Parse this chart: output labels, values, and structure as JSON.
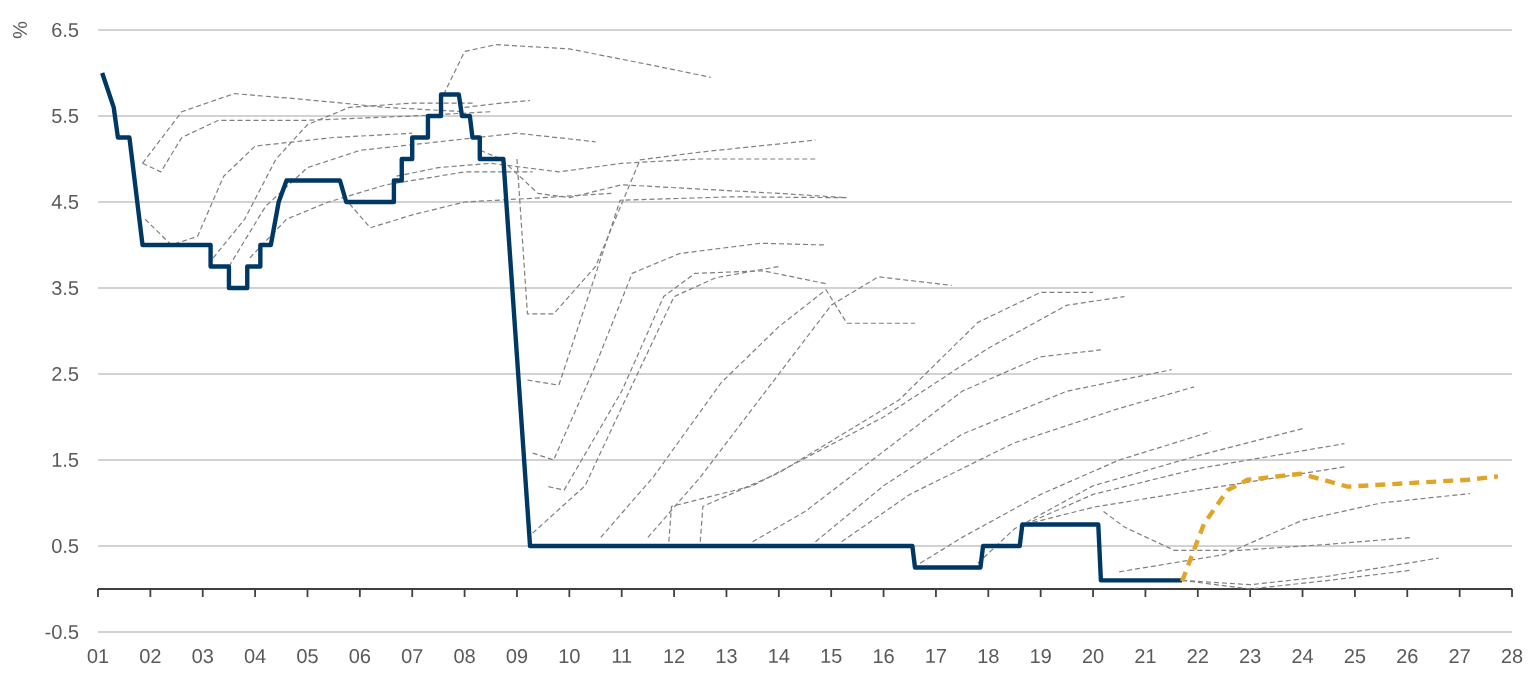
{
  "chart_data": {
    "type": "line",
    "ylabel": "%",
    "xlim": [
      1,
      28
    ],
    "ylim": [
      -0.5,
      6.5
    ],
    "xticks": [
      {
        "value": 1,
        "label": "01"
      },
      {
        "value": 2,
        "label": "02"
      },
      {
        "value": 3,
        "label": "03"
      },
      {
        "value": 4,
        "label": "04"
      },
      {
        "value": 5,
        "label": "05"
      },
      {
        "value": 6,
        "label": "06"
      },
      {
        "value": 7,
        "label": "07"
      },
      {
        "value": 8,
        "label": "08"
      },
      {
        "value": 9,
        "label": "09"
      },
      {
        "value": 10,
        "label": "10"
      },
      {
        "value": 11,
        "label": "11"
      },
      {
        "value": 12,
        "label": "12"
      },
      {
        "value": 13,
        "label": "13"
      },
      {
        "value": 14,
        "label": "14"
      },
      {
        "value": 15,
        "label": "15"
      },
      {
        "value": 16,
        "label": "16"
      },
      {
        "value": 17,
        "label": "17"
      },
      {
        "value": 18,
        "label": "18"
      },
      {
        "value": 19,
        "label": "19"
      },
      {
        "value": 20,
        "label": "20"
      },
      {
        "value": 21,
        "label": "21"
      },
      {
        "value": 22,
        "label": "22"
      },
      {
        "value": 23,
        "label": "23"
      },
      {
        "value": 24,
        "label": "24"
      },
      {
        "value": 25,
        "label": "25"
      },
      {
        "value": 26,
        "label": "26"
      },
      {
        "value": 27,
        "label": "27"
      },
      {
        "value": 28,
        "label": "28"
      }
    ],
    "yticks": [
      -0.5,
      0.5,
      1.5,
      2.5,
      3.5,
      4.5,
      5.5,
      6.5
    ],
    "grid": "y",
    "series": [
      {
        "color": "#7f7f7f",
        "line_style": "dashed",
        "x": [
          1.85,
          2.2,
          2.6,
          3.3,
          5.0,
          7.0,
          8.5
        ],
        "values": [
          4.95,
          4.85,
          5.25,
          5.45,
          5.45,
          5.5,
          5.55
        ]
      },
      {
        "color": "#7f7f7f",
        "line_style": "dashed",
        "x": [
          1.85,
          2.6,
          3.6,
          4.8,
          6.5,
          8.0
        ],
        "values": [
          4.95,
          5.55,
          5.76,
          5.7,
          5.6,
          5.55
        ]
      },
      {
        "color": "#7f7f7f",
        "line_style": "dashed",
        "x": [
          1.9,
          2.4,
          2.9,
          3.4,
          4.0,
          5.5,
          7.0
        ],
        "values": [
          4.3,
          4.0,
          4.1,
          4.8,
          5.15,
          5.25,
          5.3
        ]
      },
      {
        "color": "#7f7f7f",
        "line_style": "dashed",
        "x": [
          3.2,
          3.8,
          4.4,
          5.0,
          5.8,
          7.0,
          8.2
        ],
        "values": [
          3.85,
          4.3,
          5.0,
          5.4,
          5.6,
          5.65,
          5.65
        ]
      },
      {
        "color": "#7f7f7f",
        "line_style": "dashed",
        "x": [
          3.5,
          4.2,
          5.0,
          6.0,
          7.5,
          9.0,
          10.5
        ],
        "values": [
          3.75,
          4.45,
          4.9,
          5.1,
          5.2,
          5.3,
          5.2
        ]
      },
      {
        "color": "#7f7f7f",
        "line_style": "dashed",
        "x": [
          3.9,
          4.6,
          5.4,
          6.5,
          8.0,
          9.3
        ],
        "values": [
          3.85,
          4.3,
          4.5,
          4.7,
          4.85,
          4.85
        ]
      },
      {
        "color": "#7f7f7f",
        "line_style": "dashed",
        "x": [
          5.7,
          6.2,
          7.0,
          8.0,
          9.5,
          10.8
        ],
        "values": [
          4.55,
          4.2,
          4.35,
          4.5,
          4.55,
          4.6
        ]
      },
      {
        "color": "#7f7f7f",
        "line_style": "dashed",
        "x": [
          6.7,
          7.5,
          8.5,
          9.8,
          11.0,
          12.5,
          14.7
        ],
        "values": [
          4.8,
          4.9,
          4.95,
          4.85,
          4.95,
          5.0,
          5.0
        ]
      },
      {
        "color": "#7f7f7f",
        "line_style": "dashed",
        "x": [
          7.6,
          8.0,
          8.6,
          10.0,
          11.5,
          12.7
        ],
        "values": [
          5.75,
          6.25,
          6.33,
          6.28,
          6.1,
          5.95
        ]
      },
      {
        "color": "#7f7f7f",
        "line_style": "dashed",
        "x": [
          8.0,
          8.7,
          9.25
        ],
        "values": [
          5.6,
          5.65,
          5.68
        ]
      },
      {
        "color": "#7f7f7f",
        "line_style": "dashed",
        "x": [
          8.3,
          8.7,
          9.4,
          10.0,
          11.0,
          12.5,
          14.0,
          15.3
        ],
        "values": [
          5.1,
          5.0,
          4.6,
          4.55,
          4.7,
          4.65,
          4.6,
          4.55
        ]
      },
      {
        "color": "#7f7f7f",
        "line_style": "dashed",
        "x": [
          9.0,
          9.2,
          9.7,
          10.5,
          11.35,
          12.5,
          14.7
        ],
        "values": [
          5.0,
          3.2,
          3.2,
          3.75,
          4.99,
          5.08,
          5.22
        ]
      },
      {
        "color": "#7f7f7f",
        "line_style": "dashed",
        "x": [
          9.2,
          9.8,
          10.97,
          13.1,
          15.3
        ],
        "values": [
          2.43,
          2.37,
          4.52,
          4.56,
          4.55
        ]
      },
      {
        "color": "#7f7f7f",
        "line_style": "dashed",
        "x": [
          9.3,
          9.7,
          10.5,
          11.2,
          12.1,
          13.65,
          14.9
        ],
        "values": [
          1.58,
          1.5,
          2.6,
          3.67,
          3.9,
          4.02,
          4.0
        ]
      },
      {
        "color": "#7f7f7f",
        "line_style": "dashed",
        "x": [
          9.6,
          9.9,
          11.0,
          11.8,
          12.4,
          13.7,
          14.9
        ],
        "values": [
          1.19,
          1.15,
          2.3,
          3.4,
          3.67,
          3.7,
          3.55
        ]
      },
      {
        "color": "#7f7f7f",
        "line_style": "dashed",
        "x": [
          9.3,
          10.3,
          11.3,
          12.0,
          12.8,
          14.0
        ],
        "values": [
          0.65,
          1.2,
          2.5,
          3.4,
          3.62,
          3.75
        ]
      },
      {
        "color": "#7f7f7f",
        "line_style": "dashed",
        "x": [
          10.6,
          11.6,
          12.9,
          14.0,
          14.9,
          15.3,
          16.6
        ],
        "values": [
          0.6,
          1.3,
          2.4,
          3.05,
          3.48,
          3.09,
          3.09
        ]
      },
      {
        "color": "#7f7f7f",
        "line_style": "dashed",
        "x": [
          11.5,
          12.5,
          14.0,
          15.0,
          15.9,
          17.3
        ],
        "values": [
          0.6,
          1.3,
          2.5,
          3.3,
          3.63,
          3.53
        ]
      },
      {
        "color": "#7f7f7f",
        "line_style": "dashed",
        "x": [
          12.5,
          12.55,
          14.0,
          16.3,
          17.8,
          19.0,
          20.0
        ],
        "values": [
          0.55,
          0.96,
          1.35,
          2.2,
          3.1,
          3.45,
          3.45
        ]
      },
      {
        "color": "#7f7f7f",
        "line_style": "dashed",
        "x": [
          11.9,
          11.95,
          13.5,
          16.0,
          18.0,
          19.5,
          20.6
        ],
        "values": [
          0.55,
          0.96,
          1.2,
          2.0,
          2.8,
          3.3,
          3.4
        ]
      },
      {
        "color": "#7f7f7f",
        "line_style": "dashed",
        "x": [
          13.5,
          14.5,
          16.0,
          17.5,
          19.0,
          20.15
        ],
        "values": [
          0.55,
          0.9,
          1.6,
          2.3,
          2.7,
          2.78
        ]
      },
      {
        "color": "#7f7f7f",
        "line_style": "dashed",
        "x": [
          14.7,
          16.0,
          17.5,
          19.5,
          21.5
        ],
        "values": [
          0.55,
          1.2,
          1.8,
          2.3,
          2.55
        ]
      },
      {
        "color": "#7f7f7f",
        "line_style": "dashed",
        "x": [
          15.2,
          16.5,
          18.5,
          20.5,
          21.93
        ],
        "values": [
          0.55,
          1.1,
          1.7,
          2.1,
          2.35
        ]
      },
      {
        "color": "#7f7f7f",
        "line_style": "dashed",
        "x": [
          16.7,
          17.5,
          19.0,
          20.5,
          22.25
        ],
        "values": [
          0.3,
          0.6,
          1.1,
          1.5,
          1.83
        ]
      },
      {
        "color": "#7f7f7f",
        "line_style": "dashed",
        "x": [
          17.8,
          18.5,
          20.0,
          22.0,
          24.03
        ],
        "values": [
          0.3,
          0.7,
          1.2,
          1.55,
          1.87
        ]
      },
      {
        "color": "#7f7f7f",
        "line_style": "dashed",
        "x": [
          18.7,
          20.0,
          22.0,
          24.8
        ],
        "values": [
          0.75,
          1.1,
          1.4,
          1.69
        ]
      },
      {
        "color": "#7f7f7f",
        "line_style": "dashed",
        "x": [
          18.7,
          20.0,
          22.0,
          24.8
        ],
        "values": [
          0.75,
          0.95,
          1.15,
          1.42
        ]
      },
      {
        "color": "#7f7f7f",
        "line_style": "dashed",
        "x": [
          20.2,
          20.6,
          21.55,
          22.8,
          24.5,
          26.1
        ],
        "values": [
          0.9,
          0.72,
          0.45,
          0.45,
          0.52,
          0.6
        ]
      },
      {
        "color": "#7f7f7f",
        "line_style": "dashed",
        "x": [
          20.5,
          22.5,
          24.0,
          25.5,
          27.2
        ],
        "values": [
          0.2,
          0.4,
          0.8,
          1.0,
          1.11
        ]
      },
      {
        "color": "#7f7f7f",
        "line_style": "dashed",
        "x": [
          21.7,
          23.0,
          24.5,
          26.6
        ],
        "values": [
          0.1,
          0.05,
          0.15,
          0.36
        ]
      },
      {
        "color": "#7f7f7f",
        "line_style": "dashed",
        "x": [
          21.7,
          23.0,
          24.5,
          26.1
        ],
        "values": [
          0.1,
          0.0,
          0.1,
          0.22
        ]
      },
      {
        "color": "#003865",
        "line_style": "solid",
        "x": [
          1.08,
          1.3,
          1.38,
          1.6,
          1.85,
          3.15,
          3.15,
          3.5,
          3.5,
          3.85,
          3.85,
          4.1,
          4.1,
          4.3,
          4.45,
          4.6,
          5.62,
          5.74,
          6.65,
          6.65,
          6.8,
          6.8,
          7.0,
          7.0,
          7.3,
          7.3,
          7.55,
          7.55,
          7.89,
          7.95,
          8.1,
          8.15,
          8.29,
          8.29,
          8.74,
          9.25,
          16.55,
          16.6,
          17.85,
          17.9,
          18.6,
          18.65,
          20.1,
          20.15,
          21.7
        ],
        "values": [
          6.0,
          5.6,
          5.25,
          5.25,
          4.0,
          4.0,
          3.75,
          3.75,
          3.5,
          3.5,
          3.75,
          3.75,
          4.0,
          4.0,
          4.5,
          4.75,
          4.75,
          4.5,
          4.5,
          4.75,
          4.75,
          5.0,
          5.0,
          5.25,
          5.25,
          5.5,
          5.5,
          5.75,
          5.75,
          5.5,
          5.5,
          5.25,
          5.25,
          5.0,
          5.0,
          0.5,
          0.5,
          0.25,
          0.25,
          0.5,
          0.5,
          0.75,
          0.75,
          0.1,
          0.1
        ]
      },
      {
        "color": "#e0a526",
        "line_style": "dashed",
        "x": [
          21.7,
          22.12,
          22.57,
          22.95,
          23.97,
          24.86,
          26.0,
          27.16,
          27.73
        ],
        "values": [
          0.09,
          0.76,
          1.15,
          1.27,
          1.34,
          1.19,
          1.23,
          1.27,
          1.31
        ]
      }
    ]
  }
}
